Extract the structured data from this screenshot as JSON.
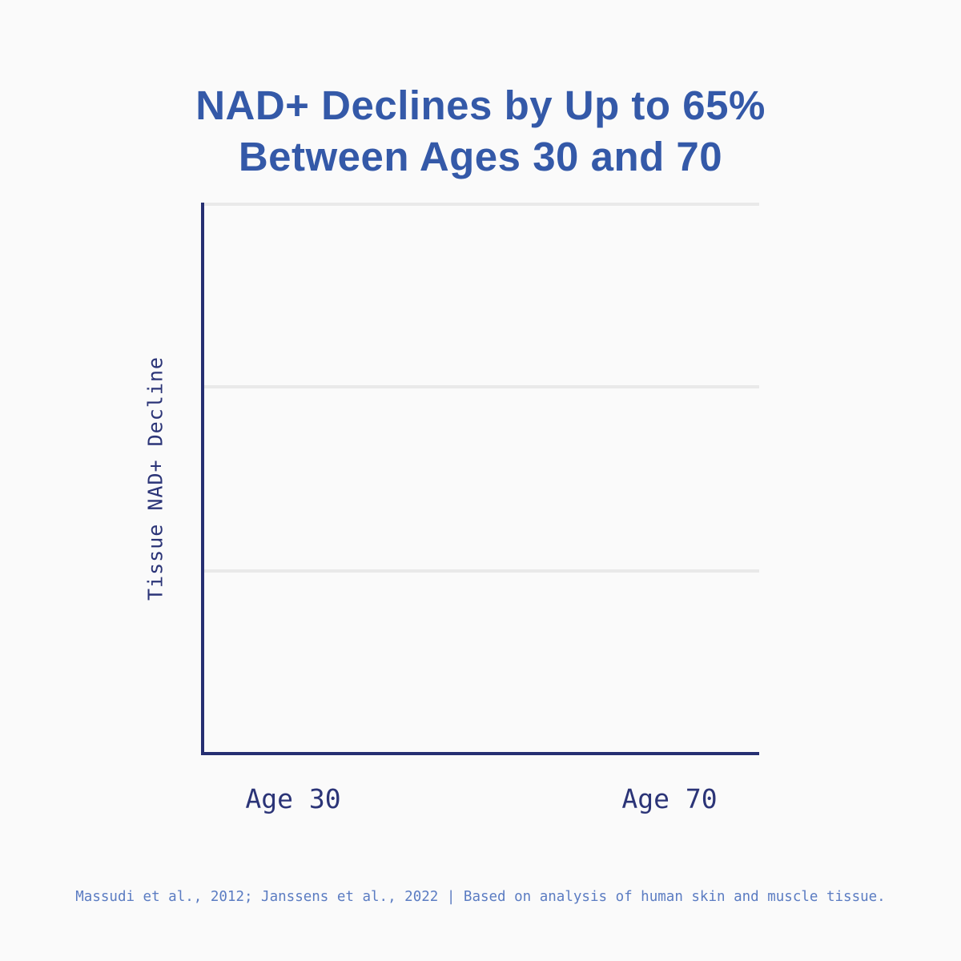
{
  "header": {
    "title_line1": "NAD+ Declines by Up to 65%",
    "title_line2": "Between Ages 30 and 70"
  },
  "chart": {
    "ylabel": "Tissue NAD+ Decline",
    "x_tick_labels": [
      "Age 30",
      "Age 70"
    ]
  },
  "footer": {
    "source": "Massudi et al., 2012; Janssens et al., 2022 | Based on analysis of human skin and muscle tissue."
  },
  "colors": {
    "background": "#fafafa",
    "title_blue": "#3459a8",
    "axis_navy": "#262f72",
    "tick_label_navy": "#2b3477",
    "footer_blue": "#5b7cc2",
    "gridline_gray": "#e9e9e9"
  },
  "chart_data": {
    "type": "bar",
    "title": "NAD+ Declines by Up to 65% Between Ages 30 and 70",
    "categories": [
      "Age 30",
      "Age 70"
    ],
    "series": [
      {
        "name": "Tissue NAD+ Decline",
        "values": []
      }
    ],
    "bars_rendered": false,
    "xlabel": "",
    "ylabel": "Tissue NAD+ Decline",
    "y_tick_labels": [],
    "grid": "horizontal",
    "gridline_count": 3,
    "legend_position": "none",
    "source_note": "Massudi et al., 2012; Janssens et al., 2022 | Based on analysis of human skin and muscle tissue."
  }
}
